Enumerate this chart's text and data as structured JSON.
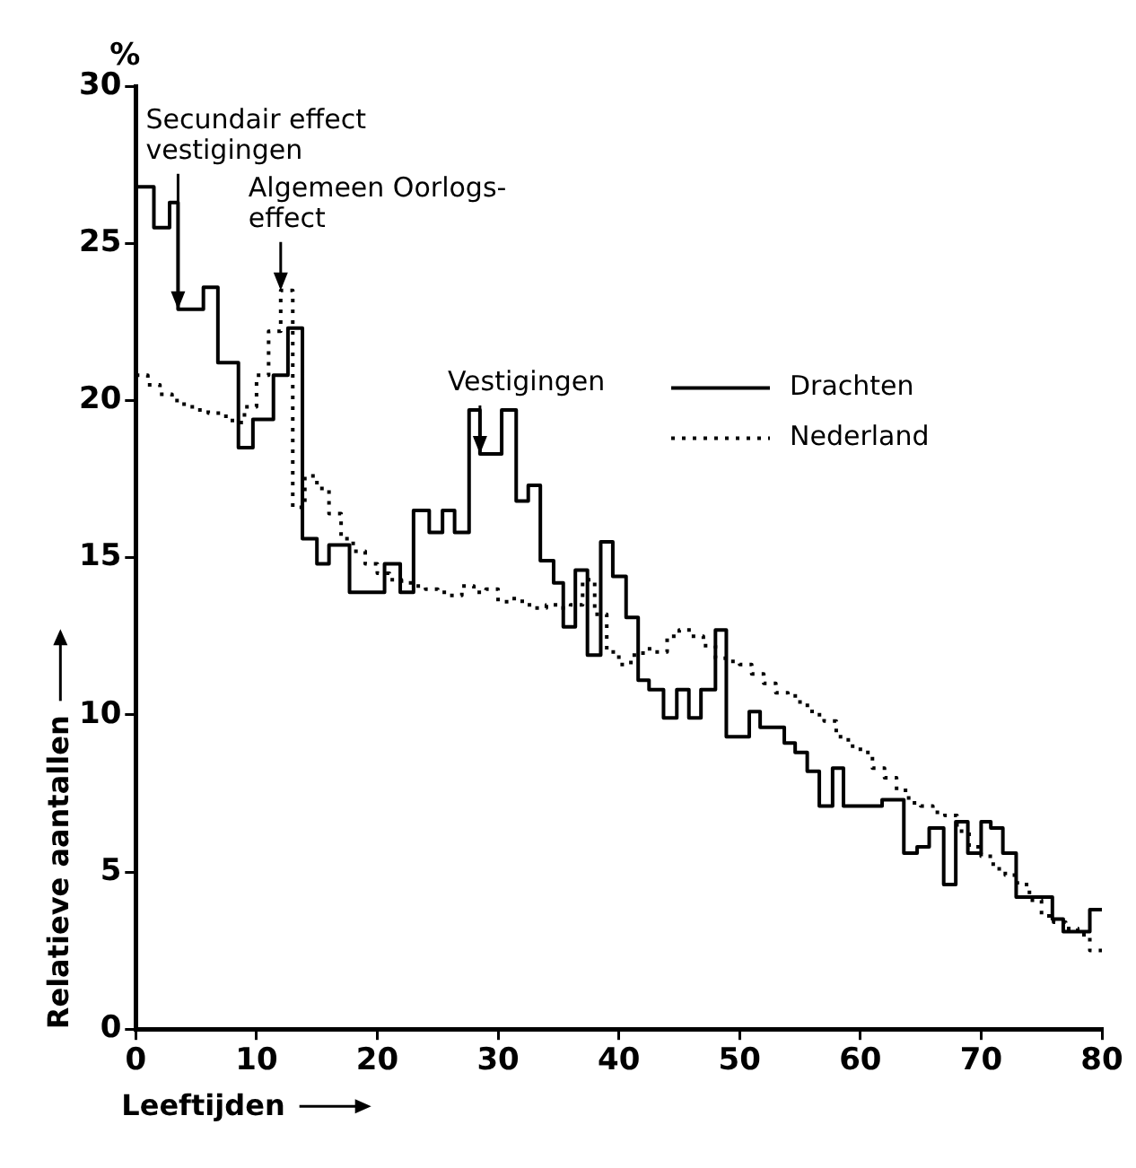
{
  "chart_data": {
    "type": "step",
    "xlabel": "Leeftijden",
    "ylabel": "Relatieve aantallen",
    "xlim": [
      0,
      80
    ],
    "ylim": [
      0,
      30
    ],
    "xticks": [
      0,
      10,
      20,
      30,
      40,
      50,
      60,
      70,
      80
    ],
    "yticks": [
      0,
      5,
      10,
      15,
      20,
      25,
      30
    ],
    "grid": false,
    "legend": "right",
    "annotations": [
      "%",
      {
        "text": "Secundair effect\nvestigingen",
        "x": 3.5,
        "y": 22.9
      },
      {
        "text": "Algemeen Oorlogs-\neffect",
        "x": 12,
        "y": 23.5
      },
      {
        "text": "Vestigingen",
        "x": 28.5,
        "y": 18.3
      }
    ],
    "series": [
      {
        "name": "Drachten",
        "color": "#000000",
        "line_style": "solid",
        "x": [
          0,
          1.5,
          2.8,
          3.5,
          5.6,
          6.8,
          8.5,
          9.7,
          11.4,
          12.6,
          13.8,
          15,
          16,
          17.7,
          20.6,
          21.9,
          23,
          24.3,
          25.4,
          26.4,
          27.6,
          28.5,
          30.3,
          31.5,
          32.5,
          33.5,
          34.6,
          35.4,
          36.4,
          37.4,
          38.5,
          39.5,
          40.6,
          41.6,
          42.5,
          43.7,
          44.8,
          45.8,
          46.8,
          48,
          48.9,
          50.8,
          51.7,
          53.7,
          54.6,
          55.6,
          56.6,
          57.7,
          58.6,
          61.8,
          63.6,
          64.7,
          65.7,
          66.9,
          67.9,
          68.9,
          70,
          70.8,
          71.8,
          72.9,
          75.9,
          76.8,
          79,
          80
        ],
        "values": [
          26.8,
          25.5,
          26.3,
          22.9,
          23.6,
          21.2,
          18.5,
          19.4,
          20.8,
          22.3,
          15.6,
          14.8,
          15.4,
          13.9,
          14.8,
          13.9,
          16.5,
          15.8,
          16.5,
          15.8,
          19.7,
          18.3,
          19.7,
          16.8,
          17.3,
          14.9,
          14.2,
          12.8,
          14.6,
          11.9,
          15.5,
          14.4,
          13.1,
          11.1,
          10.8,
          9.9,
          10.8,
          9.9,
          10.8,
          12.7,
          9.3,
          10.1,
          9.6,
          9.1,
          8.8,
          8.2,
          7.1,
          8.3,
          7.1,
          7.3,
          5.6,
          5.8,
          6.4,
          4.6,
          6.6,
          5.6,
          6.6,
          6.4,
          5.6,
          4.2,
          3.5,
          3.1,
          3.8,
          3.8
        ]
      },
      {
        "name": "Nederland",
        "color": "#000000",
        "line_style": "dotted",
        "x": [
          0,
          1,
          2,
          3,
          4,
          5,
          6,
          7,
          8,
          9,
          10,
          11,
          12,
          13,
          14,
          15,
          16,
          17,
          18,
          19,
          20,
          21,
          22,
          23,
          24,
          25,
          26,
          27,
          28,
          29,
          30,
          31,
          32,
          33,
          34,
          35,
          36,
          37,
          38,
          39,
          40,
          41,
          42,
          43,
          44,
          45,
          46,
          47,
          48,
          49,
          50,
          51,
          52,
          53,
          54,
          55,
          56,
          57,
          58,
          59,
          60,
          61,
          62,
          63,
          64,
          65,
          66,
          67,
          68,
          69,
          70,
          71,
          72,
          73,
          74,
          75,
          76,
          77,
          78,
          79,
          80
        ],
        "values": [
          20.8,
          20.5,
          20.2,
          20.0,
          19.8,
          19.7,
          19.6,
          19.5,
          19.3,
          19.8,
          20.8,
          22.2,
          23.5,
          16.6,
          17.6,
          17.2,
          16.4,
          15.6,
          15.2,
          14.8,
          14.5,
          14.3,
          14.2,
          14.1,
          14.0,
          13.9,
          13.8,
          14.1,
          13.9,
          14.0,
          13.6,
          13.7,
          13.5,
          13.4,
          13.5,
          13.4,
          13.5,
          14.3,
          13.2,
          12.0,
          11.6,
          11.9,
          12.1,
          12.0,
          12.5,
          12.7,
          12.5,
          12.2,
          11.8,
          11.7,
          11.6,
          11.3,
          11.0,
          10.7,
          10.6,
          10.3,
          10.0,
          9.8,
          9.3,
          9.0,
          8.8,
          8.3,
          8.0,
          7.6,
          7.2,
          7.1,
          6.9,
          6.8,
          6.3,
          5.8,
          5.5,
          5.1,
          4.9,
          4.6,
          4.1,
          3.6,
          3.4,
          3.2,
          3.0,
          2.5,
          2.5
        ]
      }
    ]
  }
}
